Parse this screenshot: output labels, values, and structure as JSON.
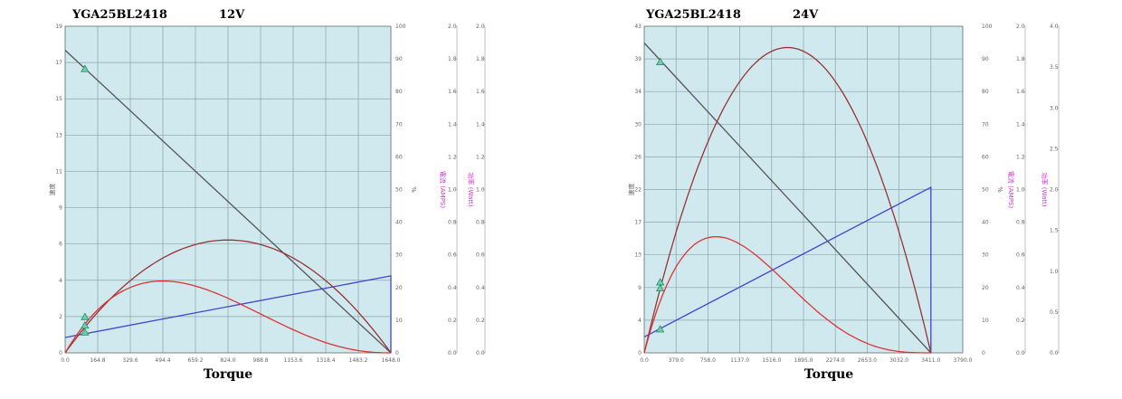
{
  "chart_data": [
    {
      "type": "line",
      "title": "YGA25BL2418",
      "subtitle": "12V",
      "xlabel": "Torque",
      "x_ticks": [
        "0.0",
        "164.8",
        "329.6",
        "494.4",
        "659.2",
        "824.0",
        "988.8",
        "1153.6",
        "1318.4",
        "1483.2",
        "1648.0"
      ],
      "xlim": [
        0,
        1648
      ],
      "left_axis": {
        "label": "速度",
        "ticks": [
          "0",
          "2",
          "4",
          "6",
          "9",
          "11",
          "13",
          "15",
          "17",
          "19"
        ],
        "lim": [
          0,
          19.1
        ]
      },
      "right_axes": [
        {
          "label": "%",
          "color": "#666666",
          "ticks": [
            "0",
            "10",
            "20",
            "30",
            "40",
            "50",
            "60",
            "70",
            "80",
            "90",
            "100"
          ],
          "lim": [
            0,
            100
          ]
        },
        {
          "label": "電流 (AMPS)",
          "color": "#cc33cc",
          "ticks": [
            "0.0",
            "0.2",
            "0.4",
            "0.6",
            "0.8",
            "1.0",
            "1.2",
            "1.4",
            "1.6",
            "1.8",
            "2.0"
          ],
          "lim": [
            0,
            2
          ]
        },
        {
          "label": "功率 (Watt)",
          "color": "#cc33cc",
          "ticks": [
            "0.0",
            "0.2",
            "0.4",
            "0.6",
            "0.8",
            "1.0",
            "1.2",
            "1.4",
            "1.6",
            "1.8",
            "2.0"
          ],
          "lim": [
            0,
            2
          ]
        }
      ],
      "grid": true,
      "background_color": "#cfe9ee",
      "series": [
        {
          "color": "#555555",
          "kind": "linear",
          "points": [
            [
              0,
              17.7
            ],
            [
              1648,
              0
            ]
          ]
        },
        {
          "color": "#4444cc",
          "kind": "linear",
          "points": [
            [
              0,
              0.9
            ],
            [
              1648,
              4.5
            ],
            [
              1648,
              0
            ]
          ]
        },
        {
          "color": "#993333",
          "kind": "parabola",
          "x0": 0,
          "x1": 1648,
          "peak_x": 824,
          "peak_y": 6.6
        },
        {
          "color": "#dd3333",
          "kind": "skewed",
          "x0": 0,
          "x1": 1648,
          "peak_x": 494,
          "peak_y": 4.2
        }
      ],
      "markers": [
        [
          100,
          16.6
        ],
        [
          100,
          2.1
        ],
        [
          100,
          1.6
        ],
        [
          100,
          1.2
        ]
      ]
    },
    {
      "type": "line",
      "title": "YGA25BL2418",
      "subtitle": "24V",
      "xlabel": "Torque",
      "x_ticks": [
        "0.0",
        "379.0",
        "758.0",
        "1137.0",
        "1516.0",
        "1895.0",
        "2274.0",
        "2653.0",
        "3032.0",
        "3411.0",
        "3790.0"
      ],
      "xlim": [
        0,
        3790
      ],
      "left_axis": {
        "label": "速度",
        "ticks": [
          "0",
          "4",
          "9",
          "13",
          "17",
          "22",
          "26",
          "30",
          "34",
          "39",
          "43"
        ],
        "lim": [
          0,
          43
        ]
      },
      "right_axes": [
        {
          "label": "%",
          "color": "#666666",
          "ticks": [
            "0",
            "10",
            "20",
            "30",
            "40",
            "50",
            "60",
            "70",
            "80",
            "90",
            "100"
          ],
          "lim": [
            0,
            100
          ]
        },
        {
          "label": "電流 (AMPS)",
          "color": "#cc33cc",
          "ticks": [
            "0.0",
            "0.2",
            "0.4",
            "0.6",
            "0.8",
            "1.0",
            "1.2",
            "1.4",
            "1.6",
            "1.8",
            "2.0"
          ],
          "lim": [
            0,
            2
          ]
        },
        {
          "label": "功率 (Watt)",
          "color": "#cc33cc",
          "ticks": [
            "0.0",
            "0.5",
            "1.0",
            "1.5",
            "2.0",
            "2.5",
            "3.0",
            "3.5",
            "4.0"
          ],
          "lim": [
            0,
            4
          ]
        }
      ],
      "grid": true,
      "background_color": "#cfe9ee",
      "series": [
        {
          "color": "#555555",
          "kind": "linear",
          "points": [
            [
              0,
              40.8
            ],
            [
              3411,
              0
            ]
          ]
        },
        {
          "color": "#4444cc",
          "kind": "linear",
          "points": [
            [
              0,
              2.1
            ],
            [
              3411,
              21.8
            ],
            [
              3411,
              0
            ]
          ]
        },
        {
          "color": "#993333",
          "kind": "parabola",
          "x0": 0,
          "x1": 3411,
          "peak_x": 1706,
          "peak_y": 40.2
        },
        {
          "color": "#dd3333",
          "kind": "skewed",
          "x0": 0,
          "x1": 3411,
          "peak_x": 853,
          "peak_y": 15.3
        }
      ],
      "markers": [
        [
          190,
          38.3
        ],
        [
          190,
          9.3
        ],
        [
          190,
          8.5
        ],
        [
          190,
          3.1
        ]
      ]
    }
  ]
}
